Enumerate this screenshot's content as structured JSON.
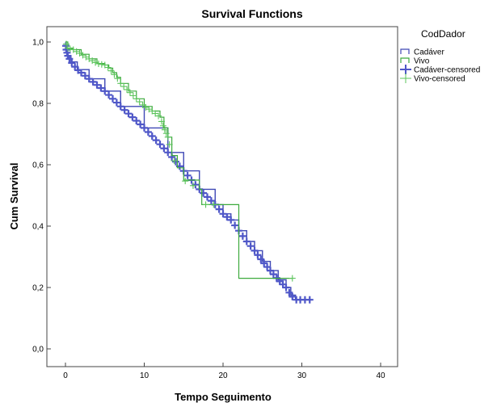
{
  "chart_data": {
    "type": "line",
    "title": "Survival Functions",
    "xlabel": "Tempo Seguimento",
    "ylabel": "Cum Survival",
    "xlim": [
      0,
      40
    ],
    "ylim": [
      0,
      1.0
    ],
    "x_ticks": [
      0,
      10,
      20,
      30,
      40
    ],
    "x_tick_labels": [
      "0",
      "10",
      "20",
      "30",
      "40"
    ],
    "y_ticks": [
      0,
      0.2,
      0.4,
      0.6,
      0.8,
      1.0
    ],
    "y_tick_labels": [
      "0,0",
      "0,2",
      "0,4",
      "0,6",
      "0,8",
      "1,0"
    ],
    "grid": false,
    "legend": {
      "title": "CodDador",
      "placement": "right",
      "entries": [
        "Cadáver",
        "Vivo",
        "Cadáver-censored",
        "Vivo-censored"
      ]
    },
    "series": [
      {
        "name": "Cadáver",
        "color": "#3f48b5",
        "marker_color": "#4f57c8",
        "style": "step",
        "points": [
          [
            0,
            1.0
          ],
          [
            0.1,
            0.975
          ],
          [
            0.3,
            0.955
          ],
          [
            0.7,
            0.935
          ],
          [
            1.5,
            0.91
          ],
          [
            3,
            0.88
          ],
          [
            5,
            0.84
          ],
          [
            7,
            0.79
          ],
          [
            10,
            0.72
          ],
          [
            13,
            0.64
          ],
          [
            15,
            0.58
          ],
          [
            17,
            0.52
          ],
          [
            19,
            0.47
          ],
          [
            20,
            0.44
          ],
          [
            21,
            0.42
          ],
          [
            22,
            0.385
          ],
          [
            23,
            0.35
          ],
          [
            24,
            0.32
          ],
          [
            25,
            0.285
          ],
          [
            26,
            0.255
          ],
          [
            27,
            0.225
          ],
          [
            28,
            0.2
          ],
          [
            28.6,
            0.175
          ],
          [
            29.2,
            0.16
          ],
          [
            30.5,
            0.16
          ],
          [
            31.2,
            0.16
          ]
        ],
        "censored_x": [
          0.05,
          0.1,
          0.2,
          0.3,
          0.5,
          0.8,
          1.2,
          1.6,
          2.0,
          2.5,
          3.0,
          3.5,
          4.0,
          4.5,
          5.0,
          5.5,
          6.0,
          6.5,
          7.0,
          7.5,
          8.0,
          8.5,
          9.0,
          9.5,
          10.0,
          10.5,
          11.0,
          11.5,
          12.0,
          12.5,
          13.0,
          13.5,
          14.0,
          14.5,
          15.0,
          15.5,
          16.0,
          16.5,
          17.0,
          17.5,
          18.0,
          18.5,
          19.0,
          19.5,
          20.0,
          20.5,
          21.0,
          21.5,
          22.0,
          22.5,
          23.0,
          23.5,
          24.0,
          24.4,
          24.8,
          25.2,
          25.6,
          26.0,
          26.4,
          26.8,
          27.2,
          27.6,
          28.0,
          28.4,
          28.8,
          29.3,
          29.8,
          30.4,
          31.0
        ]
      },
      {
        "name": "Vivo",
        "color": "#3caa3c",
        "marker_color": "#5bc45b",
        "style": "step",
        "points": [
          [
            0,
            1.0
          ],
          [
            0.3,
            0.98
          ],
          [
            1,
            0.975
          ],
          [
            2,
            0.96
          ],
          [
            3,
            0.945
          ],
          [
            4,
            0.93
          ],
          [
            5,
            0.925
          ],
          [
            5.5,
            0.915
          ],
          [
            6,
            0.9
          ],
          [
            6.5,
            0.885
          ],
          [
            7,
            0.865
          ],
          [
            8,
            0.84
          ],
          [
            9,
            0.815
          ],
          [
            10,
            0.79
          ],
          [
            11,
            0.775
          ],
          [
            12,
            0.755
          ],
          [
            12.5,
            0.72
          ],
          [
            13,
            0.69
          ],
          [
            13.5,
            0.63
          ],
          [
            14.2,
            0.59
          ],
          [
            15,
            0.55
          ],
          [
            17,
            0.52
          ],
          [
            17.3,
            0.47
          ],
          [
            21.9,
            0.47
          ],
          [
            22,
            0.23
          ],
          [
            28.8,
            0.23
          ]
        ],
        "censored_x": [
          0.1,
          0.3,
          0.6,
          1.0,
          1.4,
          1.8,
          2.2,
          2.6,
          3.0,
          3.4,
          3.8,
          4.2,
          4.6,
          5.0,
          5.4,
          5.8,
          6.2,
          6.6,
          7.0,
          7.4,
          7.8,
          8.2,
          8.6,
          9.0,
          9.4,
          9.8,
          10.2,
          10.6,
          11.0,
          11.4,
          11.8,
          12.2,
          12.4,
          12.6,
          12.8,
          13.0,
          13.2,
          13.8,
          15.2,
          16.2,
          17.8,
          18.8,
          28.8
        ]
      }
    ]
  }
}
